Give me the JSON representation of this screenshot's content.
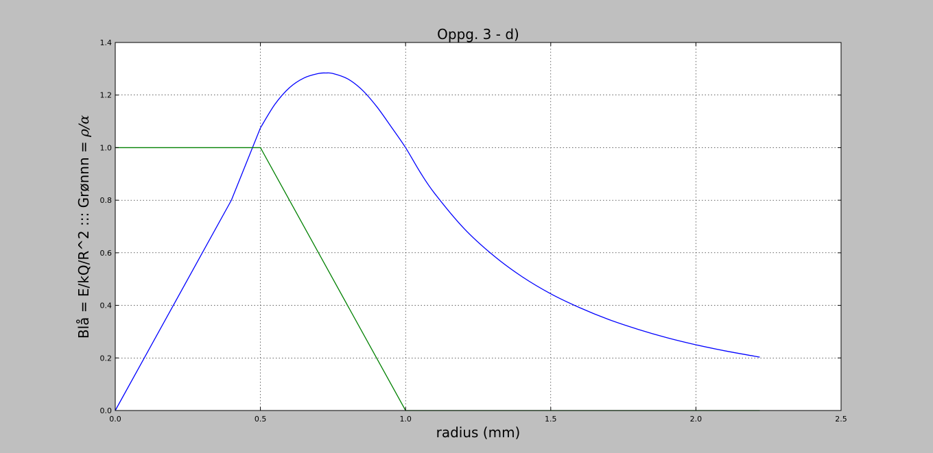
{
  "window": {
    "background": "#bfbfbf"
  },
  "chart_data": {
    "type": "line",
    "title": "Oppg. 3 - d)",
    "xlabel": "radius (mm)",
    "ylabel": "Blå = E/kQ/R^2  :::  Grønnn = ",
    "ylabel_math": "ρ/α",
    "xlim": [
      0.0,
      2.5
    ],
    "ylim": [
      0.0,
      1.4
    ],
    "xticks": [
      "0.0",
      "0.5",
      "1.0",
      "1.5",
      "2.0",
      "2.5"
    ],
    "yticks": [
      "0.0",
      "0.2",
      "0.4",
      "0.6",
      "0.8",
      "1.0",
      "1.2",
      "1.4"
    ],
    "grid": true,
    "legend": "none",
    "series": [
      {
        "color": "#0000ff",
        "x": [
          0.0,
          0.1,
          0.2,
          0.3,
          0.4,
          0.5,
          0.55,
          0.6,
          0.65,
          0.7,
          0.725,
          0.75,
          0.8,
          0.85,
          0.9,
          0.95,
          1.0,
          1.05,
          1.1,
          1.2,
          1.3,
          1.4,
          1.5,
          1.6,
          1.7,
          1.8,
          1.9,
          2.0,
          2.1,
          2.2,
          2.22
        ],
        "y": [
          0.0,
          0.2,
          0.4,
          0.6,
          0.8,
          1.075,
          1.165,
          1.228,
          1.265,
          1.282,
          1.284,
          1.282,
          1.262,
          1.22,
          1.157,
          1.08,
          1.0,
          0.907,
          0.826,
          0.694,
          0.592,
          0.51,
          0.444,
          0.391,
          0.346,
          0.309,
          0.277,
          0.25,
          0.227,
          0.207,
          0.203
        ]
      },
      {
        "color": "#008000",
        "x": [
          0.0,
          0.5,
          1.0,
          2.22
        ],
        "y": [
          1.0,
          1.0,
          0.0,
          0.0
        ]
      }
    ]
  }
}
